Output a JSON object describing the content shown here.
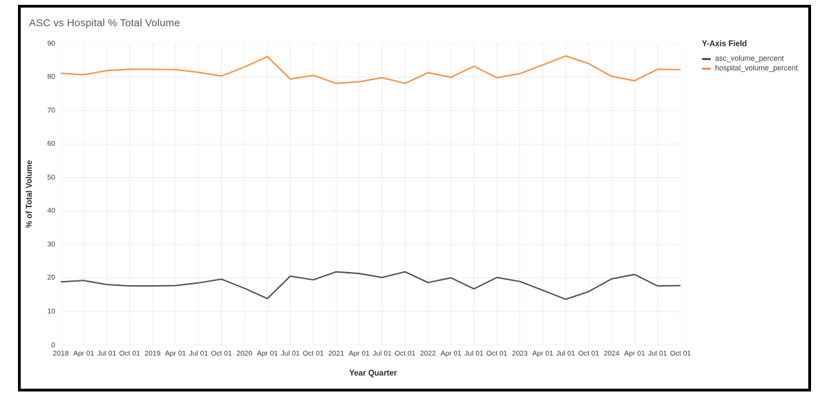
{
  "title": "ASC vs Hospital % Total Volume",
  "legend": {
    "title": "Y-Axis Field",
    "items": [
      {
        "label": "asc_volume_percent",
        "color": "#51515c"
      },
      {
        "label": "hospital_volume_percent",
        "color": "#f5913e"
      }
    ]
  },
  "axes": {
    "x_title": "Year Quarter",
    "y_title": "% of Total Volume"
  },
  "colors": {
    "grid": "#eeebeb",
    "frame_border": "#000000",
    "title_text": "#5d5a5c",
    "tick_text": "#3e3e40"
  },
  "chart_data": {
    "type": "line",
    "title": "ASC vs Hospital % Total Volume",
    "xlabel": "Year Quarter",
    "ylabel": "% of Total Volume",
    "ylim": [
      0,
      90
    ],
    "yticks": [
      0,
      10,
      20,
      30,
      40,
      50,
      60,
      70,
      80,
      90
    ],
    "grid": true,
    "legend_position": "right",
    "legend_title": "Y-Axis Field",
    "categories": [
      "2018",
      "Apr 01",
      "Jul 01",
      "Oct 01",
      "2019",
      "Apr 01",
      "Jul 01",
      "Oct 01",
      "2020",
      "Apr 01",
      "Jul 01",
      "Oct 01",
      "2021",
      "Apr 01",
      "Jul 01",
      "Oct 01",
      "2022",
      "Apr 01",
      "Jul 01",
      "Oct 01",
      "2023",
      "Apr 01",
      "Jul 01",
      "Oct 01",
      "2024",
      "Apr 01",
      "Jul 01",
      "Oct 01"
    ],
    "series": [
      {
        "name": "asc_volume_percent",
        "color": "#51515c",
        "values": [
          18.9,
          19.3,
          18.1,
          17.7,
          17.7,
          17.8,
          18.6,
          19.7,
          17.0,
          13.9,
          20.6,
          19.5,
          21.9,
          21.4,
          20.2,
          21.9,
          18.7,
          20.1,
          16.8,
          20.2,
          19.0,
          16.4,
          13.7,
          16.0,
          19.8,
          21.1,
          17.7,
          17.8
        ]
      },
      {
        "name": "hospital_volume_percent",
        "color": "#f5913e",
        "values": [
          81.1,
          80.7,
          81.9,
          82.3,
          82.3,
          82.2,
          81.4,
          80.3,
          83.0,
          86.1,
          79.4,
          80.5,
          78.1,
          78.6,
          79.8,
          78.1,
          81.3,
          79.9,
          83.2,
          79.8,
          81.0,
          83.6,
          86.3,
          84.0,
          80.2,
          78.9,
          82.3,
          82.2
        ]
      }
    ]
  }
}
